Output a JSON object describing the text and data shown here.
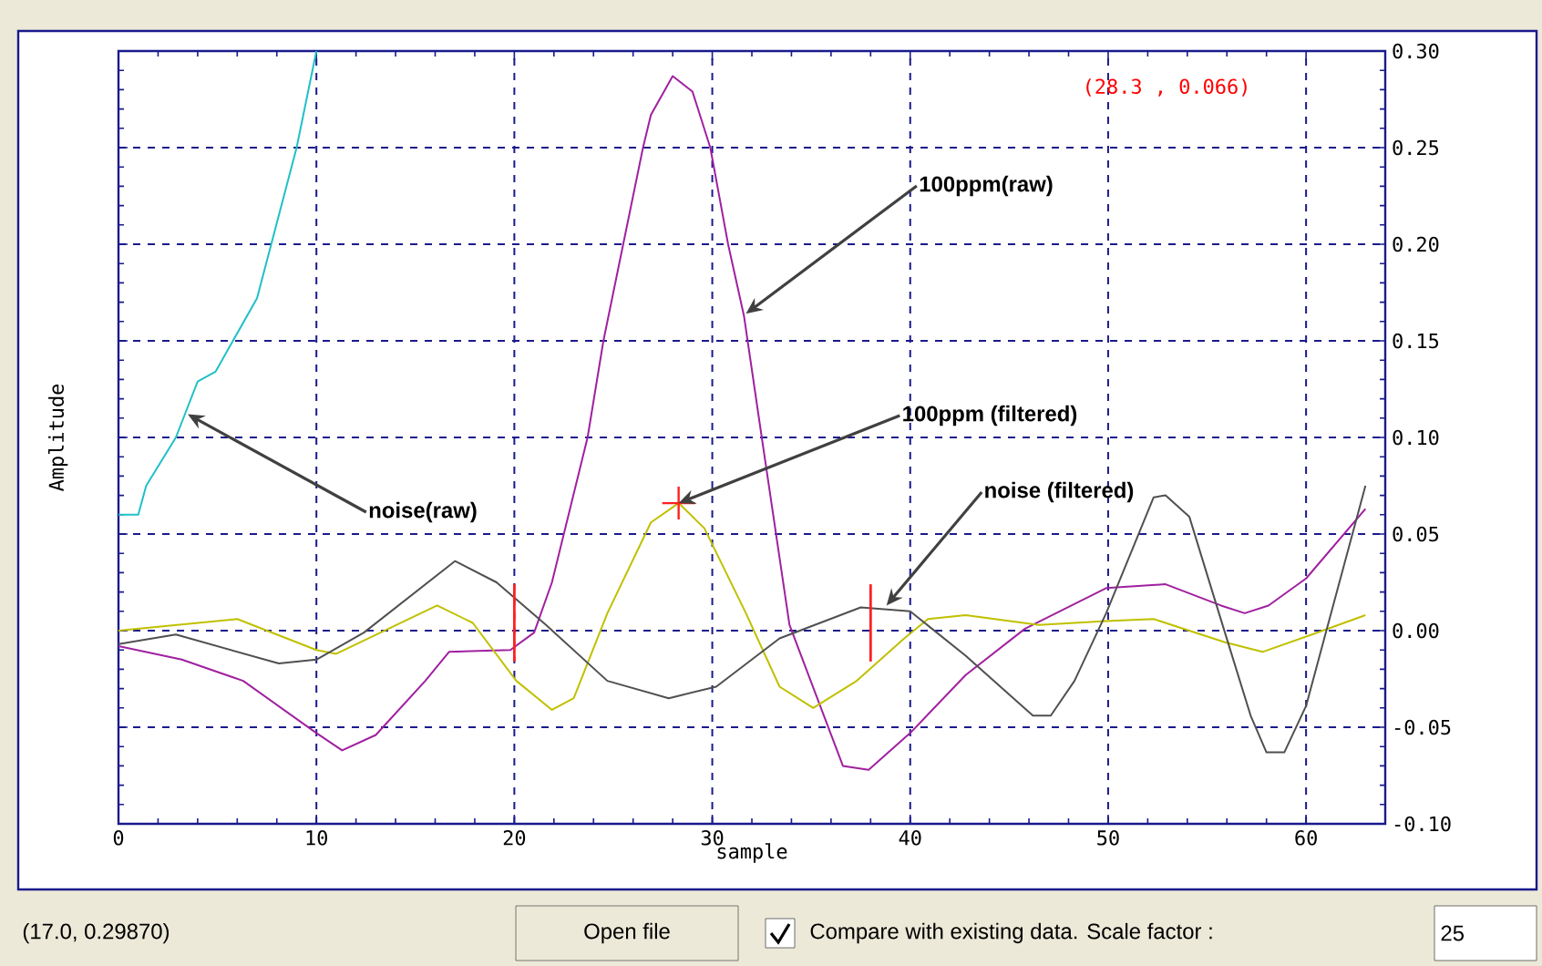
{
  "chart_data": {
    "type": "line",
    "xlabel": "sample",
    "ylabel": "Amplitude",
    "xlim": [
      0,
      64
    ],
    "ylim": [
      -0.1,
      0.3
    ],
    "xticks": [
      0,
      10,
      20,
      30,
      40,
      50,
      60
    ],
    "yticks": [
      {
        "value": -0.1,
        "label": "-0.10"
      },
      {
        "value": -0.05,
        "label": "-0.05"
      },
      {
        "value": 0,
        "label": "0.00"
      },
      {
        "value": 0.05,
        "label": "0.05"
      },
      {
        "value": 0.1,
        "label": "0.10"
      },
      {
        "value": 0.15,
        "label": "0.15"
      },
      {
        "value": 0.2,
        "label": "0.20"
      },
      {
        "value": 0.25,
        "label": "0.25"
      },
      {
        "value": 0.3,
        "label": "0.30"
      }
    ],
    "grid": true,
    "series": [
      {
        "color": "#20c0c8",
        "x": [
          0,
          1,
          1.4,
          2.9,
          4.0,
          4.9,
          7.0,
          9.0,
          10
        ],
        "values": [
          0.06,
          0.06,
          0.075,
          0.1,
          0.129,
          0.134,
          0.172,
          0.25,
          0.3
        ]
      },
      {
        "color": "#a020a0",
        "x": [
          0,
          3.2,
          6.3,
          10,
          11.3,
          13,
          15.5,
          16.7,
          19.8,
          21,
          21.9,
          23.7,
          24.5,
          25.5,
          26.5,
          26.9,
          28,
          29,
          29.9,
          30.8,
          31.6,
          32.5,
          33.9,
          36.6,
          37.9,
          40,
          42.8,
          45.8,
          49.9,
          52.9,
          55.7,
          56.9,
          58.1,
          60,
          63
        ],
        "values": [
          -0.008,
          -0.015,
          -0.026,
          -0.053,
          -0.062,
          -0.054,
          -0.026,
          -0.011,
          -0.01,
          -0.001,
          0.025,
          0.1,
          0.15,
          0.2,
          0.25,
          0.267,
          0.287,
          0.279,
          0.25,
          0.2,
          0.163,
          0.1,
          0.003,
          -0.07,
          -0.072,
          -0.053,
          -0.023,
          0.001,
          0.022,
          0.024,
          0.013,
          0.009,
          0.013,
          0.027,
          0.063
        ]
      },
      {
        "color": "#c0c000",
        "x": [
          0,
          6,
          10,
          11,
          16.1,
          17.9,
          20.1,
          21.9,
          23,
          24.7,
          26.9,
          28.3,
          29.6,
          31.7,
          33.4,
          35.1,
          37.3,
          39.7,
          40.9,
          42.8,
          46.5,
          49.9,
          52.3,
          55.9,
          57.8,
          60.3,
          63
        ],
        "values": [
          0,
          0.006,
          -0.01,
          -0.012,
          0.013,
          0.004,
          -0.026,
          -0.041,
          -0.035,
          0.009,
          0.056,
          0.066,
          0.053,
          0.009,
          -0.029,
          -0.04,
          -0.026,
          -0.004,
          0.006,
          0.008,
          0.003,
          0.005,
          0.006,
          -0.006,
          -0.011,
          -0.002,
          0.008
        ]
      },
      {
        "color": "#505050",
        "x": [
          0,
          2.9,
          8.1,
          10,
          12.4,
          17,
          19.1,
          21.6,
          24.7,
          27.8,
          30.2,
          33.4,
          37.5,
          40,
          42.8,
          46.2,
          47.1,
          48.3,
          49.9,
          52.3,
          52.9,
          54.1,
          55.9,
          57.2,
          58,
          58.9,
          60,
          61.5,
          63
        ],
        "values": [
          -0.007,
          -0.002,
          -0.017,
          -0.015,
          -0.001,
          0.036,
          0.025,
          0.003,
          -0.026,
          -0.035,
          -0.029,
          -0.004,
          0.012,
          0.01,
          -0.013,
          -0.044,
          -0.044,
          -0.026,
          0.009,
          0.069,
          0.07,
          0.059,
          -0.001,
          -0.044,
          -0.063,
          -0.063,
          -0.039,
          0.018,
          0.075
        ]
      },
      {
        "type": "scatter",
        "color": "#ff2020",
        "marker": "cross",
        "x": [
          28.3
        ],
        "values": [
          0.066
        ]
      }
    ],
    "ref_lines": [
      {
        "axis": "x",
        "value": 20,
        "color": "#ff2020"
      },
      {
        "axis": "x",
        "value": 38,
        "color": "#ff2020"
      }
    ],
    "annotations": [
      {
        "text": "noise(raw)",
        "x": 3.5,
        "y": 0.112
      },
      {
        "text": "100ppm(raw)",
        "x": 31.7,
        "y": 0.164
      },
      {
        "text": "100ppm  (filtered)",
        "x": 28.3,
        "y": 0.066
      },
      {
        "text": "noise (filtered)",
        "x": 38.8,
        "y": 0.013
      },
      "(28.3 , 0.066)",
      "(17.0, 0.29870)",
      "Open file",
      "Compare with existing data. Scale factor :",
      "25"
    ]
  }
}
